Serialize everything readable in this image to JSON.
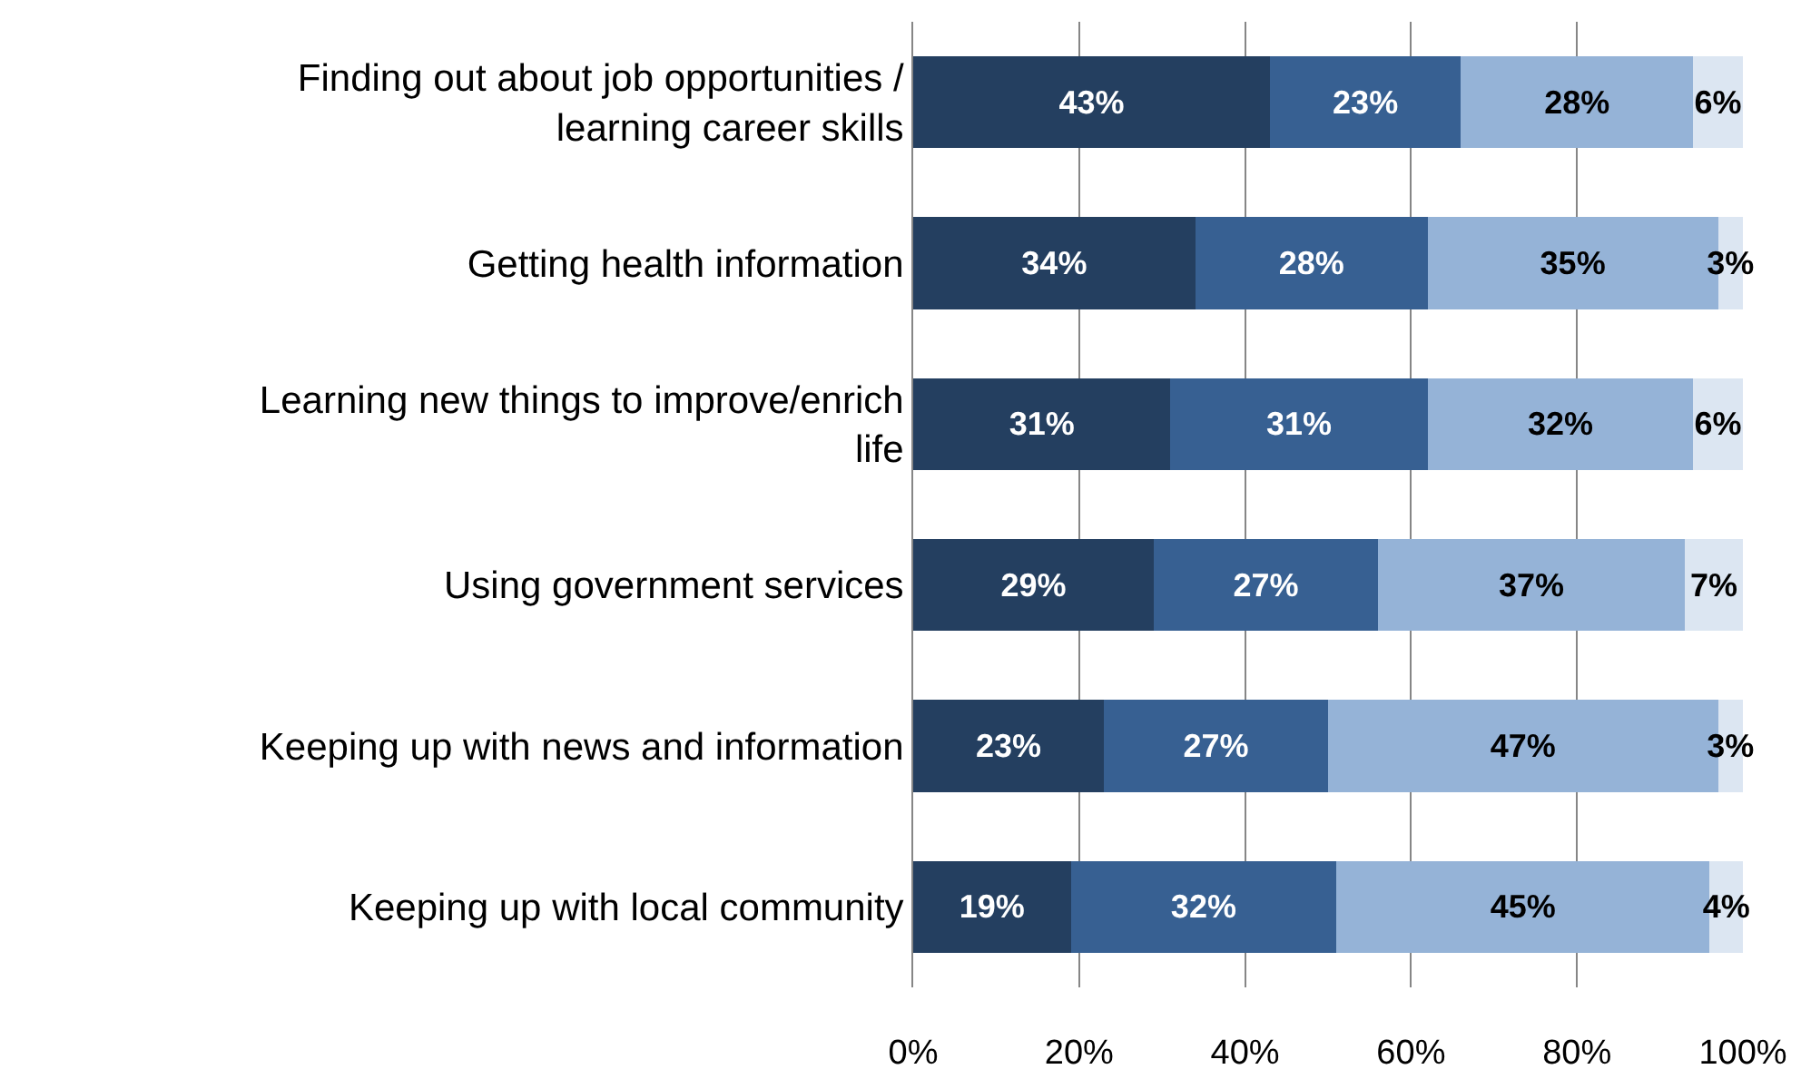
{
  "chart_data": {
    "type": "bar",
    "orientation": "horizontal",
    "stacked": true,
    "grid": "x",
    "categories": [
      "Finding out about job opportunities / learning career skills",
      "Getting health information",
      "Learning new things to improve/enrich life",
      "Using government services",
      "Keeping up with news and information",
      "Keeping up with local community"
    ],
    "series": [
      {
        "color": "#243f60",
        "values": [
          43,
          34,
          31,
          29,
          23,
          19
        ],
        "value_labels": [
          "43%",
          "34%",
          "31%",
          "29%",
          "23%",
          "19%"
        ]
      },
      {
        "color": "#376092",
        "values": [
          23,
          28,
          31,
          27,
          27,
          32
        ],
        "value_labels": [
          "23%",
          "28%",
          "31%",
          "27%",
          "27%",
          "32%"
        ]
      },
      {
        "color": "#95b3d7",
        "values": [
          28,
          35,
          32,
          37,
          47,
          45
        ],
        "value_labels": [
          "28%",
          "35%",
          "32%",
          "37%",
          "47%",
          "45%"
        ]
      },
      {
        "color": "#dce6f2",
        "values": [
          6,
          3,
          6,
          7,
          3,
          4
        ],
        "value_labels": [
          "6%",
          "3%",
          "6%",
          "7%",
          "3%",
          "4%"
        ]
      }
    ],
    "xlim": [
      0,
      100
    ],
    "xticks": [
      {
        "value": 0,
        "label": "0%"
      },
      {
        "value": 20,
        "label": "20%"
      },
      {
        "value": 40,
        "label": "40%"
      },
      {
        "value": 60,
        "label": "60%"
      },
      {
        "value": 80,
        "label": "80%"
      },
      {
        "value": 100,
        "label": "100%"
      }
    ]
  }
}
